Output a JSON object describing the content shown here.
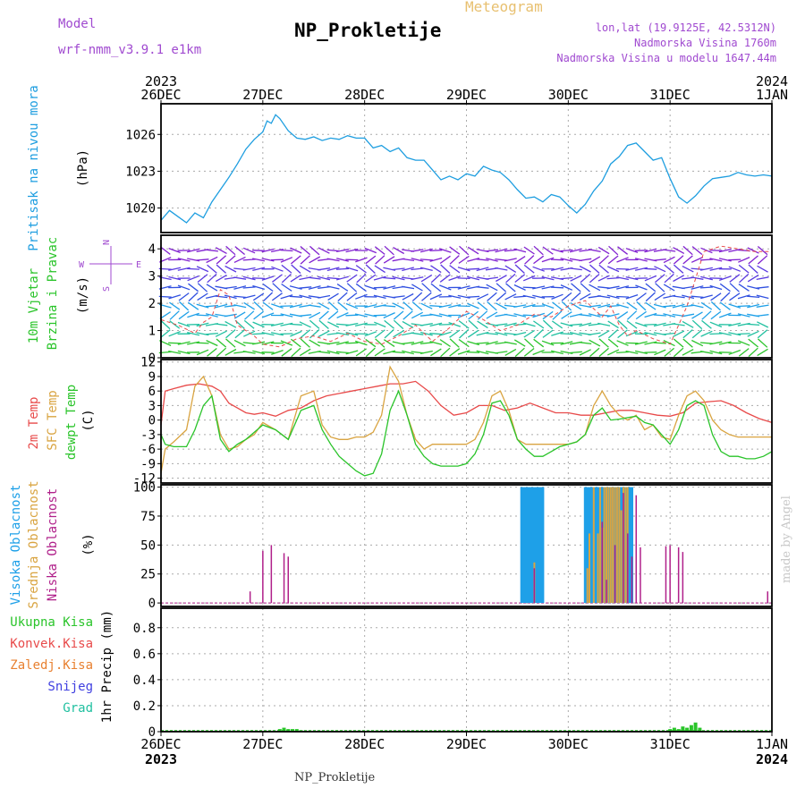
{
  "header": {
    "model_label": "Model",
    "model_name": "wrf-nmm_v3.9.1 e1km",
    "app_title": "Meteogram",
    "station": "NP_Prokletije",
    "lonlat": "lon,lat (19.9125E, 42.5312N)",
    "altitude": "Nadmorska Visina 1760m",
    "model_altitude": "Nadmorska Visina u modelu 1647.44m",
    "footer_station": "NP_Prokletije",
    "watermark": "made by Angel"
  },
  "time_axis": {
    "top_years": [
      "2023",
      "2024"
    ],
    "bottom_years": [
      "2023",
      "2024"
    ],
    "day_labels": [
      "26DEC",
      "27DEC",
      "28DEC",
      "29DEC",
      "30DEC",
      "31DEC",
      "1JAN"
    ]
  },
  "colors": {
    "pressure": "#1e9ee0",
    "temp2m": "#e84a4a",
    "sfc": "#d9a441",
    "dewpt": "#2ac42a",
    "high_cloud": "#1ea0e8",
    "mid_cloud": "#d9a441",
    "low_cloud": "#b0208a",
    "title_purple": "#a04ad0",
    "title_gold": "#e8c070",
    "black": "#000000"
  },
  "chart_data": [
    {
      "type": "line",
      "panel": "pressure",
      "ylabel_left": "Pritisak na nivou mora",
      "unit": "(hPa)",
      "yticks": [
        "1020",
        "1023",
        "1026"
      ],
      "ylim": [
        1018,
        1028.5
      ],
      "xlim_hours": [
        0,
        144
      ],
      "series": [
        {
          "name": "",
          "x": [
            0,
            2,
            4,
            6,
            8,
            10,
            12,
            14,
            16,
            18,
            20,
            22,
            24,
            25,
            26,
            27,
            28,
            30,
            32,
            34,
            36,
            38,
            40,
            42,
            44,
            46,
            48,
            50,
            52,
            54,
            56,
            58,
            60,
            62,
            64,
            66,
            68,
            70,
            72,
            74,
            76,
            78,
            80,
            82,
            84,
            86,
            88,
            90,
            92,
            94,
            96,
            98,
            100,
            102,
            104,
            106,
            108,
            110,
            112,
            114,
            116,
            118,
            120,
            122,
            124,
            126,
            128,
            130,
            132,
            134,
            136,
            138,
            140,
            142,
            144
          ],
          "y": [
            1019,
            1019.8,
            1019.3,
            1018.8,
            1019.6,
            1019.2,
            1020.5,
            1021.5,
            1022.5,
            1023.6,
            1024.8,
            1025.6,
            1026.2,
            1027.1,
            1026.9,
            1027.6,
            1027.3,
            1026.3,
            1025.7,
            1025.6,
            1025.8,
            1025.5,
            1025.7,
            1025.6,
            1025.9,
            1025.7,
            1025.7,
            1024.9,
            1025.1,
            1024.6,
            1024.9,
            1024.1,
            1023.9,
            1023.9,
            1023.1,
            1022.3,
            1022.6,
            1022.3,
            1022.8,
            1022.6,
            1023.4,
            1023.1,
            1022.9,
            1022.3,
            1021.5,
            1020.8,
            1020.9,
            1020.5,
            1021.1,
            1020.9,
            1020.2,
            1019.6,
            1020.3,
            1021.4,
            1022.2,
            1023.6,
            1024.2,
            1025.1,
            1025.3,
            1024.6,
            1023.9,
            1024.1,
            1022.4,
            1020.9,
            1020.4,
            1021.0,
            1021.8,
            1022.4,
            1022.5,
            1022.6,
            1022.9,
            1022.7,
            1022.6,
            1022.7,
            1022.6
          ]
        }
      ]
    },
    {
      "type": "line",
      "panel": "wind",
      "ylabel_left": "10m Vjetar",
      "ylabel_left2": "Brzina i Pravac",
      "unit": "(m/s)",
      "compass": {
        "north": "N",
        "south": "S",
        "east": "E",
        "west": "W"
      },
      "yticks": [
        "0",
        "1",
        "2",
        "3",
        "4"
      ],
      "ylim": [
        0,
        4.5
      ],
      "xlim_hours": [
        0,
        144
      ],
      "series": [
        {
          "name": "",
          "x": [
            0,
            4,
            8,
            10,
            12,
            14,
            16,
            18,
            20,
            22,
            24,
            28,
            32,
            36,
            40,
            44,
            48,
            52,
            56,
            60,
            64,
            68,
            72,
            76,
            80,
            84,
            88,
            92,
            96,
            100,
            104,
            106,
            108,
            110,
            112,
            116,
            120,
            124,
            128,
            132,
            136,
            140,
            144
          ],
          "y": [
            1.4,
            1.2,
            0.9,
            1.3,
            1.5,
            2.5,
            2.3,
            1.2,
            1.0,
            0.8,
            0.5,
            0.4,
            0.7,
            0.8,
            0.6,
            0.9,
            0.6,
            0.5,
            0.8,
            1.2,
            0.6,
            1.1,
            1.7,
            1.4,
            1.0,
            1.2,
            1.6,
            1.5,
            1.9,
            2.1,
            1.5,
            1.9,
            1.2,
            0.8,
            1.0,
            0.7,
            0.5,
            1.9,
            3.9,
            4.1,
            4.0,
            3.9,
            3.9
          ]
        }
      ]
    },
    {
      "type": "line",
      "panel": "temperature",
      "ylabel_left": "2m Temp",
      "ylabel_left2": "SFC Temp",
      "ylabel_left3": "dewpt Temp",
      "unit": "(C)",
      "yticks": [
        "-12",
        "-9",
        "-6",
        "-3",
        "0",
        "3",
        "6",
        "9",
        "12"
      ],
      "ylim": [
        -13,
        12.5
      ],
      "xlim_hours": [
        0,
        144
      ],
      "series": [
        {
          "name": "2m Temp",
          "x": [
            0,
            1,
            3,
            6,
            9,
            12,
            14,
            16,
            18,
            20,
            22,
            24,
            27,
            30,
            33,
            36,
            39,
            42,
            45,
            48,
            51,
            54,
            57,
            60,
            63,
            66,
            69,
            72,
            75,
            78,
            81,
            84,
            87,
            90,
            93,
            96,
            99,
            102,
            105,
            108,
            111,
            114,
            117,
            120,
            123,
            126,
            129,
            132,
            135,
            138,
            141,
            144
          ],
          "y": [
            -1,
            6,
            6.5,
            7.2,
            7.5,
            7,
            6,
            3.5,
            2.5,
            1.5,
            1.2,
            1.5,
            0.8,
            2,
            2.5,
            4,
            5,
            5.5,
            6,
            6.5,
            7,
            7.5,
            7.5,
            8,
            6,
            3,
            1,
            1.5,
            3,
            3,
            2,
            2.5,
            3.5,
            2.5,
            1.5,
            1.5,
            1,
            1,
            1.5,
            2,
            2,
            1.5,
            1,
            0.8,
            1.5,
            3.5,
            3.8,
            4,
            3,
            1.5,
            0.3,
            -0.5
          ]
        },
        {
          "name": "SFC Temp",
          "x": [
            0,
            1,
            3,
            6,
            8,
            10,
            12,
            14,
            16,
            18,
            20,
            22,
            24,
            27,
            30,
            33,
            36,
            38,
            40,
            42,
            44,
            46,
            48,
            50,
            52,
            54,
            56,
            58,
            60,
            62,
            64,
            66,
            68,
            70,
            72,
            74,
            76,
            78,
            80,
            82,
            84,
            86,
            88,
            90,
            92,
            94,
            96,
            98,
            100,
            102,
            104,
            106,
            108,
            110,
            112,
            114,
            116,
            118,
            120,
            122,
            124,
            126,
            128,
            130,
            132,
            134,
            136,
            138,
            140,
            142,
            144
          ],
          "y": [
            -11,
            -6,
            -4.5,
            -2,
            7,
            9,
            5,
            -3,
            -6,
            -5.5,
            -4,
            -3,
            -0.5,
            -2,
            -4,
            5,
            6,
            -1,
            -3.5,
            -4,
            -4,
            -3.5,
            -3.5,
            -2.5,
            1,
            11,
            8,
            1,
            -4,
            -6,
            -5,
            -5,
            -5,
            -5,
            -5,
            -4,
            -0.5,
            5,
            6,
            2,
            -4,
            -5,
            -5,
            -5,
            -5,
            -5,
            -5,
            -4.5,
            -3,
            3,
            6,
            3,
            1,
            0,
            1,
            -2,
            -1,
            -3.5,
            -4,
            1,
            5,
            6,
            4,
            0,
            -2,
            -3,
            -3.5,
            -3.5,
            -3.5,
            -3.5,
            -3.5
          ]
        },
        {
          "name": "dewpt Temp",
          "x": [
            0,
            1,
            3,
            6,
            8,
            10,
            12,
            14,
            16,
            18,
            20,
            22,
            24,
            27,
            30,
            33,
            36,
            38,
            40,
            42,
            44,
            46,
            48,
            50,
            52,
            54,
            56,
            58,
            60,
            62,
            64,
            66,
            68,
            70,
            72,
            74,
            76,
            78,
            80,
            82,
            84,
            86,
            88,
            90,
            92,
            94,
            96,
            98,
            100,
            102,
            104,
            106,
            108,
            110,
            112,
            114,
            116,
            118,
            120,
            122,
            124,
            126,
            128,
            130,
            132,
            134,
            136,
            138,
            140,
            142,
            144
          ],
          "y": [
            -3,
            -5,
            -5.5,
            -5.5,
            -2,
            3,
            5,
            -4,
            -6.5,
            -5,
            -4,
            -2.5,
            -1,
            -2,
            -4,
            2,
            3,
            -2,
            -5,
            -7.5,
            -9,
            -10.5,
            -11.5,
            -11,
            -7,
            2,
            6,
            1,
            -5,
            -7.5,
            -9,
            -9.5,
            -9.5,
            -9.5,
            -9,
            -7,
            -3,
            3.5,
            4,
            1,
            -4,
            -6,
            -7.5,
            -7.5,
            -6.5,
            -5.5,
            -5,
            -4.5,
            -3,
            1,
            2.5,
            0,
            0.2,
            0.5,
            0.8,
            -0.5,
            -1,
            -3,
            -5,
            -2,
            3,
            4,
            3,
            -3,
            -6.5,
            -7.5,
            -7.5,
            -8,
            -8,
            -7.5,
            -6.5
          ]
        }
      ]
    },
    {
      "type": "bar",
      "panel": "cloud",
      "ylabel_left": "Visoka Oblacnost",
      "ylabel_left2": "Srednja Oblacnost",
      "ylabel_left3": "Niska Oblacnost",
      "unit": "(%)",
      "yticks": [
        "0",
        "25",
        "50",
        "75",
        "100"
      ],
      "ylim": [
        -3,
        102
      ],
      "xlim_hours": [
        0,
        144
      ],
      "series": [
        {
          "name": "Visoka Oblacnost",
          "x": [
            85,
            85.5,
            86,
            86.5,
            87,
            87.5,
            88,
            88.5,
            89,
            89.5,
            90,
            100,
            100.5,
            101,
            101.5,
            102,
            102.5,
            103,
            103.5,
            104,
            104.5,
            105,
            105.5,
            106,
            106.5,
            107,
            107.5,
            108,
            108.5,
            109,
            109.5,
            110,
            110.5,
            111
          ],
          "y": [
            100,
            100,
            100,
            100,
            100,
            100,
            100,
            100,
            100,
            100,
            100,
            100,
            100,
            100,
            100,
            100,
            100,
            100,
            100,
            100,
            100,
            100,
            100,
            100,
            100,
            100,
            100,
            100,
            100,
            100,
            100,
            100,
            100,
            100
          ]
        },
        {
          "name": "Srednja Oblacnost",
          "x": [
            88,
            100.5,
            101,
            102,
            103,
            103.5,
            104,
            104.5,
            105,
            105.5,
            106,
            106.5,
            107,
            107.5,
            108,
            108.5,
            109,
            109.5,
            110
          ],
          "y": [
            35,
            30,
            60,
            100,
            60,
            100,
            65,
            100,
            100,
            100,
            100,
            100,
            100,
            100,
            100,
            80,
            100,
            100,
            100
          ]
        },
        {
          "name": "Niska Oblacnost",
          "x": [
            21,
            24,
            26,
            29,
            30,
            88,
            104,
            105,
            107,
            109,
            110,
            111,
            112,
            113,
            119,
            120,
            122,
            123,
            143
          ],
          "y": [
            10,
            45,
            50,
            43,
            40,
            30,
            70,
            20,
            50,
            95,
            60,
            40,
            93,
            48,
            49,
            50,
            48,
            44,
            10
          ]
        }
      ]
    },
    {
      "type": "bar",
      "panel": "precip",
      "ylabel_left": "1hr Precip (mm)",
      "legend": [
        "Ukupna Kisa",
        "Konvek.Kisa",
        "Zaledj.Kisa",
        "Snijeg",
        "Grad"
      ],
      "legend_colors": [
        "#2ac42a",
        "#e84a4a",
        "#e88030",
        "#4040e0",
        "#20c0a0"
      ],
      "yticks": [
        "0",
        "0.2",
        "0.4",
        "0.6",
        "0.8"
      ],
      "ylim": [
        0,
        0.95
      ],
      "xlim_hours": [
        0,
        144
      ],
      "series": [
        {
          "name": "Ukupna Kisa",
          "x": [
            28,
            29,
            30,
            31,
            32,
            33,
            120,
            121,
            122,
            123,
            124,
            125,
            126,
            127
          ],
          "y": [
            0.02,
            0.03,
            0.02,
            0.02,
            0.02,
            0.01,
            0.02,
            0.03,
            0.02,
            0.04,
            0.03,
            0.05,
            0.07,
            0.03
          ]
        }
      ]
    }
  ]
}
